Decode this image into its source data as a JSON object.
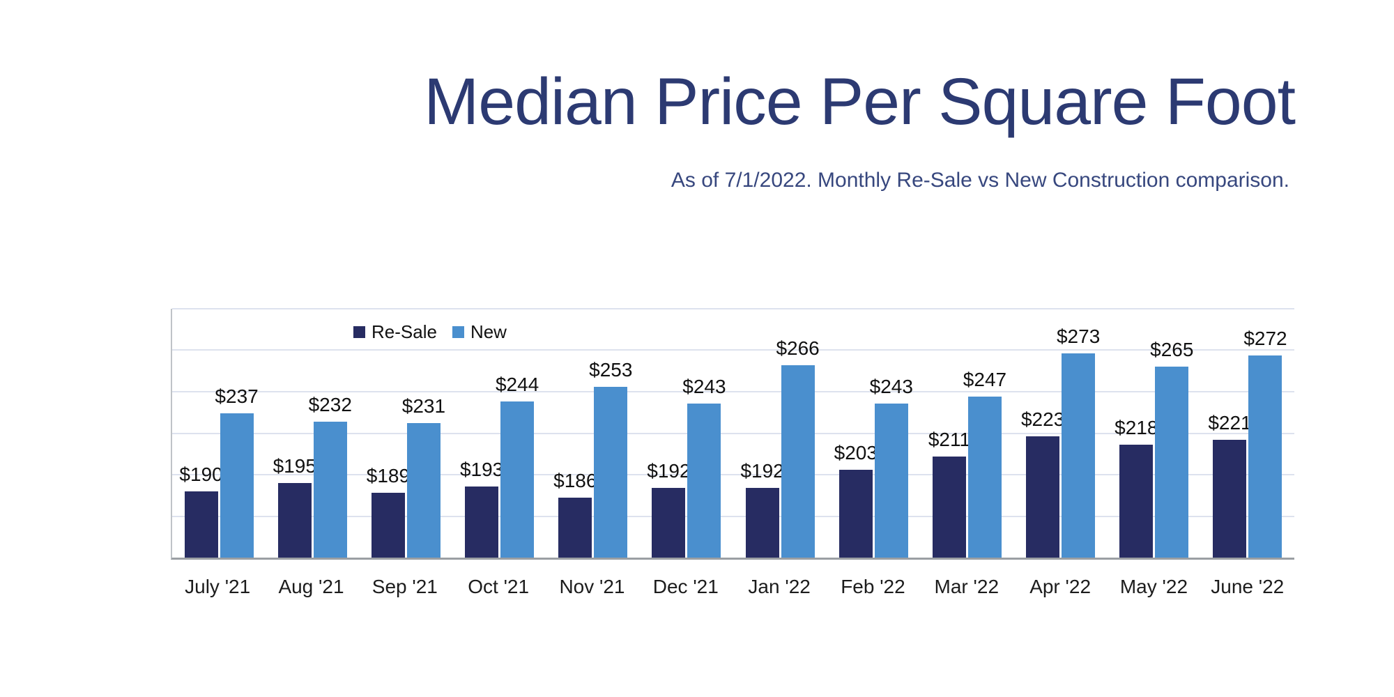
{
  "page": {
    "title": "Median Price Per Square Foot",
    "subtitle": "As of 7/1/2022. Monthly Re-Sale vs New Construction comparison."
  },
  "colors": {
    "resale_bar": "#272c62",
    "new_bar": "#4a8fce",
    "title_text": "#2c3a72",
    "subtitle_text": "#37477e",
    "gridline": "#dde2ee",
    "axis_left": "#bfc3c7",
    "axis_bottom": "#9b9fa3"
  },
  "chart_data": {
    "type": "bar",
    "title": "Median Price Per Square Foot",
    "subtitle": "As of 7/1/2022. Monthly Re-Sale vs New Construction comparison.",
    "categories": [
      "July '21",
      "Aug '21",
      "Sep '21",
      "Oct '21",
      "Nov '21",
      "Dec '21",
      "Jan '22",
      "Feb '22",
      "Mar '22",
      "Apr '22",
      "May '22",
      "June '22"
    ],
    "series": [
      {
        "name": "Re-Sale",
        "color": "#272c62",
        "values": [
          190,
          195,
          189,
          193,
          186,
          192,
          192,
          203,
          211,
          223,
          218,
          221
        ]
      },
      {
        "name": "New",
        "color": "#4a8fce",
        "values": [
          237,
          232,
          231,
          244,
          253,
          243,
          266,
          243,
          247,
          273,
          265,
          272
        ]
      }
    ],
    "value_prefix": "$",
    "data_labels": true,
    "ylim": [
      150,
      300
    ],
    "yticks": [
      300,
      275,
      250,
      225,
      200,
      175,
      150
    ],
    "grid": "horizontal",
    "legend_position": "top-left-inside",
    "xlabel": "",
    "ylabel": ""
  }
}
